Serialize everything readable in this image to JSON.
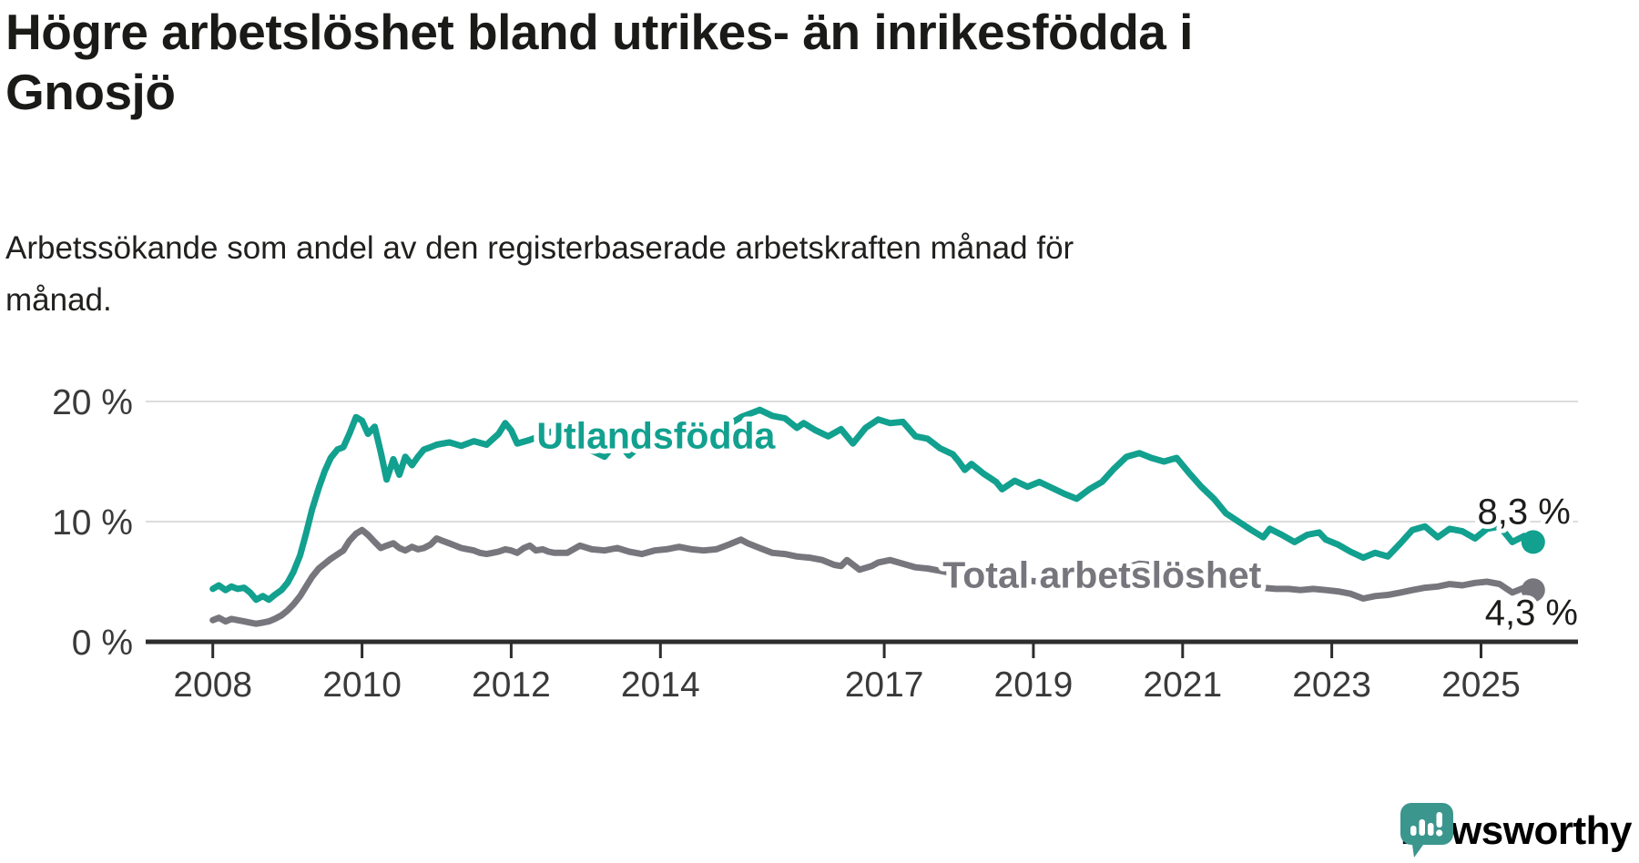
{
  "header": {
    "title_lines": [
      "Högre arbetslöshet bland utrikes- än inrikesfödda i",
      "Gnosjö"
    ],
    "subtitle_lines": [
      "Arbetssökande som andel av den registerbaserade arbetskraften månad för",
      "månad."
    ]
  },
  "branding": {
    "logo_text": "Newsworthy",
    "logo_color": "#3b968e",
    "logo_icon": "speech-bubble-bar-chart-icon"
  },
  "colors": {
    "foreign_born_line": "#12a08f",
    "total_line": "#77767d",
    "value_label": "#1d1d1b",
    "axis_text": "#3a3a3a",
    "gridline": "#dcdcdc"
  },
  "chart_data": {
    "type": "line",
    "title": "Högre arbetslöshet bland utrikes- än inrikesfödda i Gnosjö",
    "subtitle": "Arbetssökande som andel av den registerbaserade arbetskraften månad för månad.",
    "grid": "horizontal-only",
    "legend_position": "inline-labels",
    "x_axis": {
      "range": [
        2007.1,
        2026.3
      ],
      "ticks": [
        {
          "x": 2008,
          "label": "2008"
        },
        {
          "x": 2010,
          "label": "2010"
        },
        {
          "x": 2012,
          "label": "2012"
        },
        {
          "x": 2014,
          "label": "2014"
        },
        {
          "x": 2017,
          "label": "2017"
        },
        {
          "x": 2019,
          "label": "2019"
        },
        {
          "x": 2021,
          "label": "2021"
        },
        {
          "x": 2023,
          "label": "2023"
        },
        {
          "x": 2025,
          "label": "2025"
        }
      ]
    },
    "y_axis": {
      "range": [
        0,
        20
      ],
      "unit": "%",
      "ticks": [
        {
          "v": 0,
          "label": "0 %"
        },
        {
          "v": 10,
          "label": "10 %"
        },
        {
          "v": 20,
          "label": "20 %"
        }
      ],
      "gridlines": [
        10,
        20
      ]
    },
    "series": [
      {
        "id": "utlandsfodda",
        "name": "Utlandsfödda",
        "color": "#12a08f",
        "end_value": 8.3,
        "end_label": {
          "text": "8,3 %",
          "x": 2026.2,
          "y": 9.8
        },
        "inline_label": {
          "text": "Utlandsfödda",
          "x": 2013.94,
          "y": 16.1
        },
        "points": [
          [
            2008.0,
            4.4
          ],
          [
            2008.08,
            4.7
          ],
          [
            2008.17,
            4.3
          ],
          [
            2008.25,
            4.6
          ],
          [
            2008.33,
            4.4
          ],
          [
            2008.42,
            4.5
          ],
          [
            2008.5,
            4.1
          ],
          [
            2008.58,
            3.5
          ],
          [
            2008.67,
            3.8
          ],
          [
            2008.75,
            3.5
          ],
          [
            2008.83,
            3.9
          ],
          [
            2008.92,
            4.3
          ],
          [
            2009.0,
            4.9
          ],
          [
            2009.08,
            5.8
          ],
          [
            2009.17,
            7.2
          ],
          [
            2009.25,
            9.0
          ],
          [
            2009.33,
            11.0
          ],
          [
            2009.42,
            12.8
          ],
          [
            2009.5,
            14.2
          ],
          [
            2009.58,
            15.3
          ],
          [
            2009.67,
            16.0
          ],
          [
            2009.75,
            16.2
          ],
          [
            2009.83,
            17.3
          ],
          [
            2009.92,
            18.7
          ],
          [
            2010.0,
            18.4
          ],
          [
            2010.08,
            17.3
          ],
          [
            2010.17,
            17.9
          ],
          [
            2010.25,
            15.8
          ],
          [
            2010.33,
            13.5
          ],
          [
            2010.42,
            15.2
          ],
          [
            2010.5,
            13.9
          ],
          [
            2010.58,
            15.4
          ],
          [
            2010.67,
            14.7
          ],
          [
            2010.75,
            15.4
          ],
          [
            2010.83,
            16.0
          ],
          [
            2010.92,
            16.2
          ],
          [
            2011.0,
            16.4
          ],
          [
            2011.17,
            16.6
          ],
          [
            2011.33,
            16.3
          ],
          [
            2011.5,
            16.7
          ],
          [
            2011.67,
            16.4
          ],
          [
            2011.83,
            17.3
          ],
          [
            2011.92,
            18.2
          ],
          [
            2012.0,
            17.6
          ],
          [
            2012.08,
            16.5
          ],
          [
            2012.25,
            16.8
          ],
          [
            2012.42,
            17.2
          ],
          [
            2012.58,
            17.6
          ],
          [
            2012.75,
            17.2
          ],
          [
            2012.92,
            16.5
          ],
          [
            2013.08,
            15.9
          ],
          [
            2013.25,
            15.4
          ],
          [
            2013.42,
            16.7
          ],
          [
            2013.58,
            15.5
          ],
          [
            2013.75,
            16.4
          ],
          [
            2013.92,
            16.9
          ],
          [
            2014.08,
            17.1
          ],
          [
            2014.25,
            16.4
          ],
          [
            2014.42,
            16.1
          ],
          [
            2014.58,
            17.3
          ],
          [
            2014.75,
            17.4
          ],
          [
            2014.92,
            18.1
          ],
          [
            2015.08,
            18.7
          ],
          [
            2015.25,
            19.1
          ],
          [
            2015.33,
            19.3
          ],
          [
            2015.5,
            18.8
          ],
          [
            2015.67,
            18.6
          ],
          [
            2015.83,
            17.8
          ],
          [
            2015.92,
            18.2
          ],
          [
            2016.08,
            17.6
          ],
          [
            2016.25,
            17.1
          ],
          [
            2016.42,
            17.7
          ],
          [
            2016.58,
            16.5
          ],
          [
            2016.75,
            17.8
          ],
          [
            2016.92,
            18.5
          ],
          [
            2017.08,
            18.2
          ],
          [
            2017.25,
            18.3
          ],
          [
            2017.42,
            17.1
          ],
          [
            2017.58,
            16.9
          ],
          [
            2017.75,
            16.1
          ],
          [
            2017.92,
            15.6
          ],
          [
            2018.0,
            15.0
          ],
          [
            2018.08,
            14.3
          ],
          [
            2018.17,
            14.8
          ],
          [
            2018.33,
            14.0
          ],
          [
            2018.5,
            13.3
          ],
          [
            2018.58,
            12.7
          ],
          [
            2018.75,
            13.4
          ],
          [
            2018.92,
            12.9
          ],
          [
            2019.08,
            13.3
          ],
          [
            2019.25,
            12.8
          ],
          [
            2019.42,
            12.3
          ],
          [
            2019.58,
            11.9
          ],
          [
            2019.75,
            12.7
          ],
          [
            2019.92,
            13.3
          ],
          [
            2020.08,
            14.4
          ],
          [
            2020.25,
            15.4
          ],
          [
            2020.42,
            15.7
          ],
          [
            2020.58,
            15.3
          ],
          [
            2020.75,
            15.0
          ],
          [
            2020.92,
            15.3
          ],
          [
            2021.08,
            14.1
          ],
          [
            2021.25,
            12.9
          ],
          [
            2021.42,
            11.9
          ],
          [
            2021.58,
            10.7
          ],
          [
            2021.75,
            10.0
          ],
          [
            2021.92,
            9.3
          ],
          [
            2022.08,
            8.7
          ],
          [
            2022.17,
            9.4
          ],
          [
            2022.33,
            8.9
          ],
          [
            2022.5,
            8.3
          ],
          [
            2022.67,
            8.9
          ],
          [
            2022.83,
            9.1
          ],
          [
            2022.92,
            8.5
          ],
          [
            2023.08,
            8.1
          ],
          [
            2023.25,
            7.5
          ],
          [
            2023.42,
            7.0
          ],
          [
            2023.58,
            7.4
          ],
          [
            2023.75,
            7.1
          ],
          [
            2023.92,
            8.2
          ],
          [
            2024.08,
            9.3
          ],
          [
            2024.25,
            9.6
          ],
          [
            2024.42,
            8.7
          ],
          [
            2024.58,
            9.4
          ],
          [
            2024.75,
            9.2
          ],
          [
            2024.92,
            8.6
          ],
          [
            2025.08,
            9.4
          ],
          [
            2025.25,
            9.6
          ],
          [
            2025.42,
            8.3
          ],
          [
            2025.58,
            8.8
          ],
          [
            2025.7,
            8.3
          ]
        ]
      },
      {
        "id": "total",
        "name": "Total arbetslöshet",
        "color": "#77767d",
        "end_value": 4.3,
        "end_label": {
          "text": "4,3 %",
          "x": 2026.3,
          "y": 1.4
        },
        "inline_label": {
          "text": "Total arbetslöshet",
          "x": 2019.92,
          "y": 4.5
        },
        "points": [
          [
            2008.0,
            1.8
          ],
          [
            2008.08,
            2.0
          ],
          [
            2008.17,
            1.7
          ],
          [
            2008.25,
            1.9
          ],
          [
            2008.33,
            1.8
          ],
          [
            2008.42,
            1.7
          ],
          [
            2008.5,
            1.6
          ],
          [
            2008.58,
            1.5
          ],
          [
            2008.67,
            1.6
          ],
          [
            2008.75,
            1.7
          ],
          [
            2008.83,
            1.9
          ],
          [
            2008.92,
            2.2
          ],
          [
            2009.0,
            2.6
          ],
          [
            2009.08,
            3.1
          ],
          [
            2009.17,
            3.8
          ],
          [
            2009.25,
            4.6
          ],
          [
            2009.33,
            5.4
          ],
          [
            2009.42,
            6.1
          ],
          [
            2009.58,
            6.9
          ],
          [
            2009.75,
            7.6
          ],
          [
            2009.83,
            8.4
          ],
          [
            2009.92,
            9.0
          ],
          [
            2010.0,
            9.3
          ],
          [
            2010.08,
            8.9
          ],
          [
            2010.17,
            8.3
          ],
          [
            2010.25,
            7.8
          ],
          [
            2010.33,
            8.0
          ],
          [
            2010.42,
            8.2
          ],
          [
            2010.5,
            7.8
          ],
          [
            2010.58,
            7.6
          ],
          [
            2010.67,
            7.9
          ],
          [
            2010.75,
            7.7
          ],
          [
            2010.83,
            7.8
          ],
          [
            2010.92,
            8.1
          ],
          [
            2011.0,
            8.6
          ],
          [
            2011.08,
            8.4
          ],
          [
            2011.17,
            8.2
          ],
          [
            2011.25,
            8.0
          ],
          [
            2011.33,
            7.8
          ],
          [
            2011.42,
            7.7
          ],
          [
            2011.5,
            7.6
          ],
          [
            2011.58,
            7.4
          ],
          [
            2011.67,
            7.3
          ],
          [
            2011.75,
            7.4
          ],
          [
            2011.83,
            7.5
          ],
          [
            2011.92,
            7.7
          ],
          [
            2012.0,
            7.6
          ],
          [
            2012.08,
            7.4
          ],
          [
            2012.17,
            7.8
          ],
          [
            2012.25,
            8.0
          ],
          [
            2012.33,
            7.6
          ],
          [
            2012.42,
            7.7
          ],
          [
            2012.5,
            7.5
          ],
          [
            2012.58,
            7.4
          ],
          [
            2012.75,
            7.4
          ],
          [
            2012.92,
            8.0
          ],
          [
            2013.08,
            7.7
          ],
          [
            2013.25,
            7.6
          ],
          [
            2013.42,
            7.8
          ],
          [
            2013.58,
            7.5
          ],
          [
            2013.75,
            7.3
          ],
          [
            2013.92,
            7.6
          ],
          [
            2014.08,
            7.7
          ],
          [
            2014.25,
            7.9
          ],
          [
            2014.42,
            7.7
          ],
          [
            2014.58,
            7.6
          ],
          [
            2014.75,
            7.7
          ],
          [
            2014.92,
            8.1
          ],
          [
            2015.0,
            8.3
          ],
          [
            2015.08,
            8.5
          ],
          [
            2015.17,
            8.2
          ],
          [
            2015.33,
            7.8
          ],
          [
            2015.5,
            7.4
          ],
          [
            2015.67,
            7.3
          ],
          [
            2015.83,
            7.1
          ],
          [
            2016.0,
            7.0
          ],
          [
            2016.17,
            6.8
          ],
          [
            2016.33,
            6.4
          ],
          [
            2016.42,
            6.3
          ],
          [
            2016.5,
            6.8
          ],
          [
            2016.67,
            6.0
          ],
          [
            2016.83,
            6.3
          ],
          [
            2016.92,
            6.6
          ],
          [
            2017.08,
            6.8
          ],
          [
            2017.25,
            6.5
          ],
          [
            2017.42,
            6.2
          ],
          [
            2017.58,
            6.1
          ],
          [
            2017.75,
            5.9
          ],
          [
            2017.92,
            5.7
          ],
          [
            2018.08,
            5.6
          ],
          [
            2018.25,
            5.4
          ],
          [
            2018.42,
            5.3
          ],
          [
            2018.58,
            5.2
          ],
          [
            2018.75,
            5.1
          ],
          [
            2018.92,
            5.1
          ],
          [
            2019.08,
            5.0
          ],
          [
            2019.25,
            4.9
          ],
          [
            2019.42,
            4.8
          ],
          [
            2019.58,
            4.9
          ],
          [
            2019.75,
            5.0
          ],
          [
            2019.92,
            5.2
          ],
          [
            2020.08,
            5.6
          ],
          [
            2020.25,
            6.2
          ],
          [
            2020.42,
            6.5
          ],
          [
            2020.58,
            6.4
          ],
          [
            2020.75,
            6.2
          ],
          [
            2020.92,
            6.1
          ],
          [
            2021.08,
            6.0
          ],
          [
            2021.25,
            5.7
          ],
          [
            2021.42,
            5.4
          ],
          [
            2021.58,
            5.1
          ],
          [
            2021.75,
            4.9
          ],
          [
            2021.92,
            4.7
          ],
          [
            2022.08,
            4.5
          ],
          [
            2022.25,
            4.4
          ],
          [
            2022.42,
            4.4
          ],
          [
            2022.58,
            4.3
          ],
          [
            2022.75,
            4.4
          ],
          [
            2022.92,
            4.3
          ],
          [
            2023.08,
            4.2
          ],
          [
            2023.25,
            4.0
          ],
          [
            2023.42,
            3.6
          ],
          [
            2023.58,
            3.8
          ],
          [
            2023.75,
            3.9
          ],
          [
            2023.92,
            4.1
          ],
          [
            2024.08,
            4.3
          ],
          [
            2024.25,
            4.5
          ],
          [
            2024.42,
            4.6
          ],
          [
            2024.58,
            4.8
          ],
          [
            2024.75,
            4.7
          ],
          [
            2024.92,
            4.9
          ],
          [
            2025.08,
            5.0
          ],
          [
            2025.25,
            4.8
          ],
          [
            2025.42,
            4.1
          ],
          [
            2025.58,
            4.5
          ],
          [
            2025.7,
            4.3
          ]
        ]
      }
    ]
  }
}
